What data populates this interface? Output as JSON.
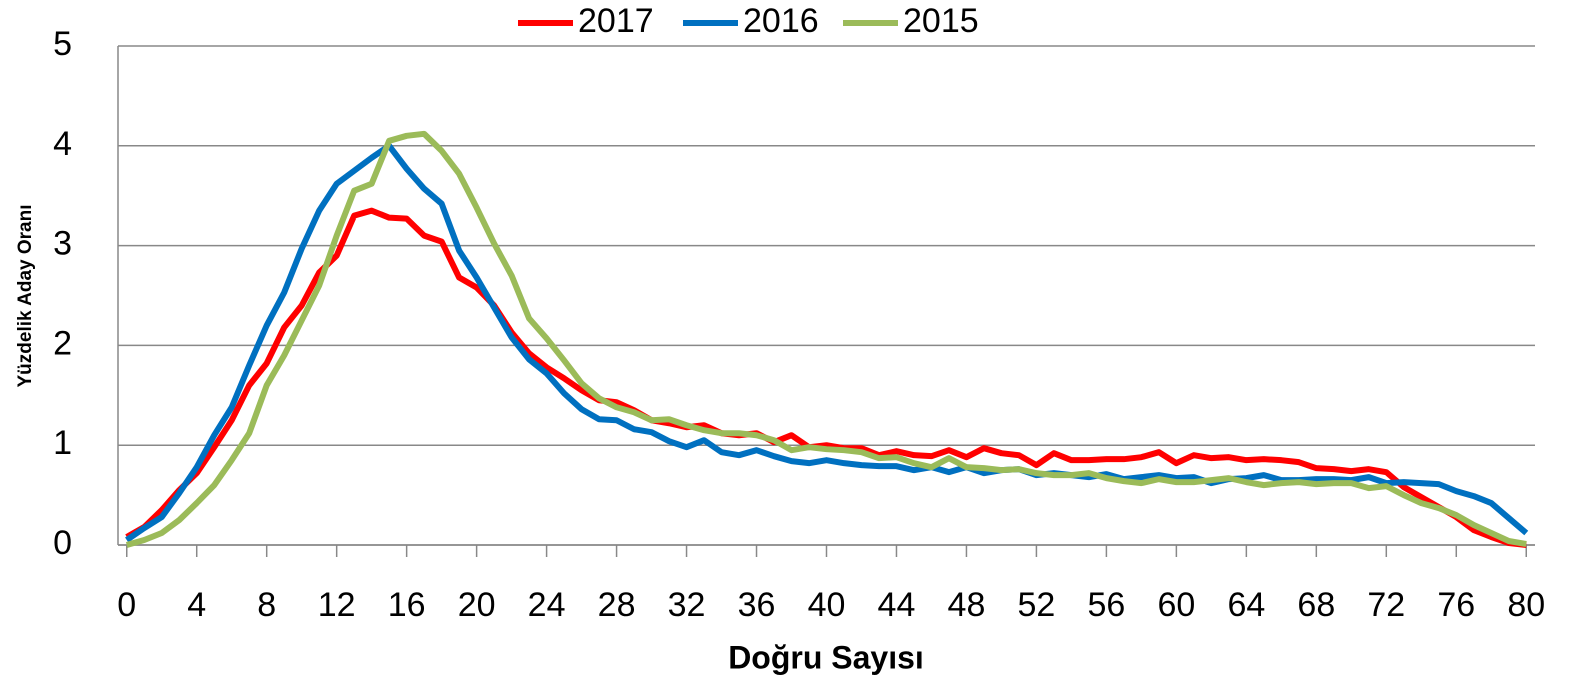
{
  "chart_data": {
    "type": "line",
    "x_label": "Doğru Sayısı",
    "y_label": "Yüzdelik Aday Oranı",
    "x": [
      0,
      1,
      2,
      3,
      4,
      5,
      6,
      7,
      8,
      9,
      10,
      11,
      12,
      13,
      14,
      15,
      16,
      17,
      18,
      19,
      20,
      21,
      22,
      23,
      24,
      25,
      26,
      27,
      28,
      29,
      30,
      31,
      32,
      33,
      34,
      35,
      36,
      37,
      38,
      39,
      40,
      41,
      42,
      43,
      44,
      45,
      46,
      47,
      48,
      49,
      50,
      51,
      52,
      53,
      54,
      55,
      56,
      57,
      58,
      59,
      60,
      61,
      62,
      63,
      64,
      65,
      66,
      67,
      68,
      69,
      70,
      71,
      72,
      73,
      74,
      75,
      76,
      77,
      78,
      79,
      80
    ],
    "xlim": [
      -0.5,
      80.5
    ],
    "xticks": [
      0,
      4,
      8,
      12,
      16,
      20,
      24,
      28,
      32,
      36,
      40,
      44,
      48,
      52,
      56,
      60,
      64,
      68,
      72,
      76,
      80
    ],
    "ylim": [
      0,
      5
    ],
    "yticks": [
      0,
      1,
      2,
      3,
      4,
      5
    ],
    "grid": true,
    "legend": "top",
    "series": [
      {
        "name": "2017",
        "color": "#ff0000",
        "values": [
          0.08,
          0.18,
          0.35,
          0.55,
          0.72,
          0.98,
          1.25,
          1.6,
          1.82,
          2.18,
          2.4,
          2.73,
          2.9,
          3.3,
          3.35,
          3.28,
          3.27,
          3.1,
          3.04,
          2.68,
          2.58,
          2.4,
          2.13,
          1.92,
          1.78,
          1.67,
          1.55,
          1.45,
          1.43,
          1.35,
          1.25,
          1.22,
          1.18,
          1.2,
          1.12,
          1.1,
          1.12,
          1.03,
          1.1,
          0.98,
          1.0,
          0.97,
          0.97,
          0.9,
          0.94,
          0.9,
          0.89,
          0.95,
          0.88,
          0.97,
          0.92,
          0.9,
          0.8,
          0.92,
          0.85,
          0.85,
          0.86,
          0.86,
          0.88,
          0.93,
          0.82,
          0.9,
          0.87,
          0.88,
          0.85,
          0.86,
          0.85,
          0.83,
          0.77,
          0.76,
          0.74,
          0.76,
          0.73,
          0.58,
          0.48,
          0.38,
          0.28,
          0.15,
          0.08,
          0.02,
          0.0
        ]
      },
      {
        "name": "2016",
        "color": "#0070c0",
        "values": [
          0.05,
          0.17,
          0.28,
          0.52,
          0.78,
          1.1,
          1.38,
          1.8,
          2.2,
          2.53,
          2.97,
          3.35,
          3.62,
          3.75,
          3.88,
          4.0,
          3.77,
          3.57,
          3.42,
          2.95,
          2.68,
          2.38,
          2.08,
          1.86,
          1.72,
          1.52,
          1.36,
          1.26,
          1.25,
          1.16,
          1.13,
          1.04,
          0.98,
          1.05,
          0.93,
          0.9,
          0.95,
          0.89,
          0.84,
          0.82,
          0.85,
          0.82,
          0.8,
          0.79,
          0.79,
          0.75,
          0.78,
          0.73,
          0.78,
          0.72,
          0.75,
          0.76,
          0.7,
          0.72,
          0.7,
          0.68,
          0.71,
          0.66,
          0.68,
          0.7,
          0.67,
          0.68,
          0.62,
          0.66,
          0.67,
          0.7,
          0.65,
          0.65,
          0.66,
          0.66,
          0.65,
          0.68,
          0.62,
          0.63,
          0.62,
          0.61,
          0.54,
          0.49,
          0.42,
          0.27,
          0.12
        ]
      },
      {
        "name": "2015",
        "color": "#9bbb59",
        "values": [
          0.0,
          0.05,
          0.12,
          0.25,
          0.42,
          0.6,
          0.85,
          1.12,
          1.6,
          1.9,
          2.25,
          2.6,
          3.1,
          3.55,
          3.62,
          4.05,
          4.1,
          4.12,
          3.95,
          3.72,
          3.38,
          3.02,
          2.7,
          2.27,
          2.07,
          1.85,
          1.62,
          1.47,
          1.38,
          1.33,
          1.25,
          1.26,
          1.2,
          1.15,
          1.12,
          1.12,
          1.1,
          1.05,
          0.95,
          0.98,
          0.96,
          0.95,
          0.93,
          0.87,
          0.88,
          0.82,
          0.78,
          0.87,
          0.78,
          0.77,
          0.75,
          0.76,
          0.72,
          0.7,
          0.7,
          0.72,
          0.67,
          0.64,
          0.62,
          0.66,
          0.63,
          0.63,
          0.65,
          0.67,
          0.63,
          0.6,
          0.62,
          0.63,
          0.61,
          0.62,
          0.62,
          0.57,
          0.59,
          0.5,
          0.42,
          0.37,
          0.3,
          0.2,
          0.12,
          0.04,
          0.01
        ]
      }
    ]
  }
}
